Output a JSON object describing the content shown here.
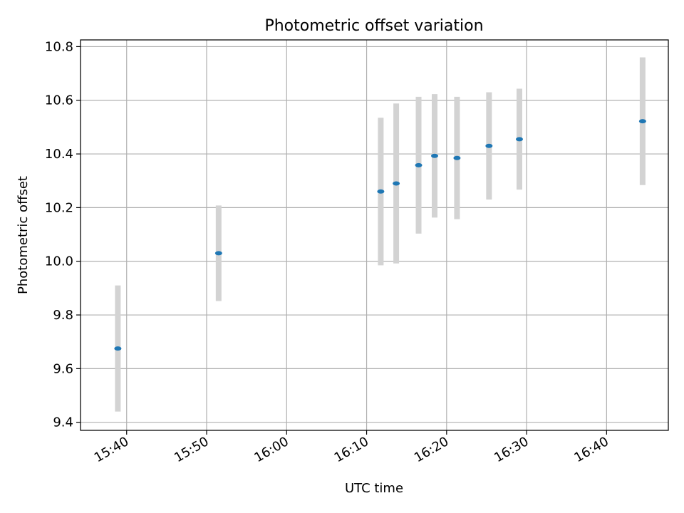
{
  "chart_data": {
    "type": "scatter",
    "title": "Photometric offset variation",
    "xlabel": "UTC time",
    "ylabel": "Photometric offset",
    "grid": true,
    "x_tick_labels": [
      "15:40",
      "15:50",
      "16:00",
      "16:10",
      "16:20",
      "16:30",
      "16:40"
    ],
    "y_tick_labels": [
      "9.4",
      "9.6",
      "9.8",
      "10.0",
      "10.2",
      "10.4",
      "10.6",
      "10.8"
    ],
    "xlim": [
      "15:34:14",
      "16:47:43"
    ],
    "ylim": [
      9.37,
      10.825
    ],
    "points": [
      {
        "time": "15:38:54",
        "y": 9.675,
        "err": 0.235
      },
      {
        "time": "15:51:30",
        "y": 10.03,
        "err": 0.178
      },
      {
        "time": "16:11:46",
        "y": 10.26,
        "err": 0.275
      },
      {
        "time": "16:13:42",
        "y": 10.29,
        "err": 0.298
      },
      {
        "time": "16:16:30",
        "y": 10.358,
        "err": 0.255
      },
      {
        "time": "16:18:30",
        "y": 10.393,
        "err": 0.23
      },
      {
        "time": "16:21:18",
        "y": 10.385,
        "err": 0.228
      },
      {
        "time": "16:25:18",
        "y": 10.43,
        "err": 0.2
      },
      {
        "time": "16:29:06",
        "y": 10.455,
        "err": 0.188
      },
      {
        "time": "16:44:30",
        "y": 10.522,
        "err": 0.238
      }
    ],
    "colors": {
      "point": "#1f77b4",
      "errorbar": "#d3d3d3",
      "grid": "#b0b0b0",
      "axis": "#000000"
    }
  }
}
